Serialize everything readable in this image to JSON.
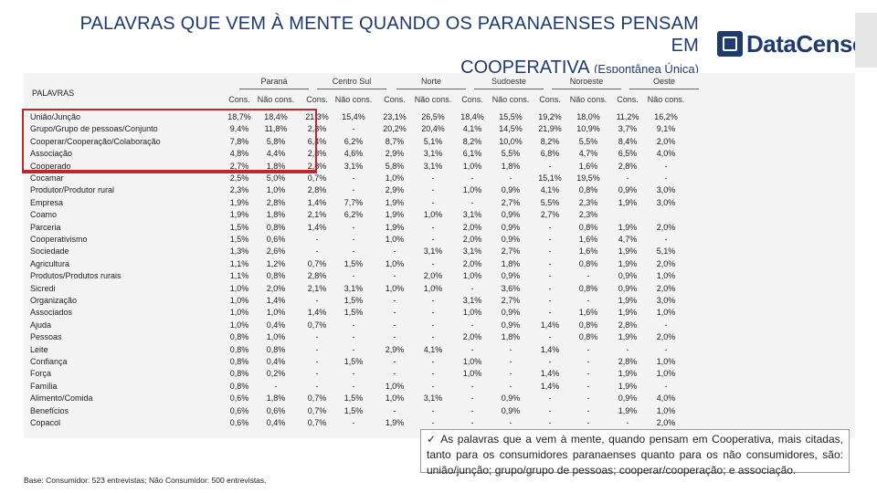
{
  "header": {
    "title_line1": "PALAVRAS QUE VEM À MENTE QUANDO OS PARANAENSES PENSAM EM",
    "title_line2": "COOPERATIVA",
    "title_sub": "(Espontânea Única)"
  },
  "logo": {
    "text": "DataCenso",
    "icon": "datacenso-logo-mark"
  },
  "table": {
    "row_header": "PALAVRAS",
    "groups": [
      "Paraná",
      "Centro Sul",
      "Norte",
      "Sudoeste",
      "Noroeste",
      "Oeste"
    ],
    "subheaders": [
      "Cons.",
      "Não cons."
    ],
    "rows": [
      {
        "label": "União/Junção",
        "values": [
          "18,7%",
          "18,4%",
          "21,3%",
          "15,4%",
          "23,1%",
          "26,5%",
          "18,4%",
          "15,5%",
          "19,2%",
          "18,0%",
          "11,2%",
          "16,2%"
        ]
      },
      {
        "label": "Grupo/Grupo de pessoas/Conjunto",
        "values": [
          "9,4%",
          "11,8%",
          "2,8%",
          "-",
          "20,2%",
          "20,4%",
          "4,1%",
          "14,5%",
          "21,9%",
          "10,9%",
          "3,7%",
          "9,1%"
        ]
      },
      {
        "label": "Cooperar/Cooperação/Colaboração",
        "values": [
          "7,8%",
          "5,8%",
          "6,4%",
          "6,2%",
          "8,7%",
          "5,1%",
          "8,2%",
          "10,0%",
          "8,2%",
          "5,5%",
          "8,4%",
          "2,0%"
        ]
      },
      {
        "label": "Associação",
        "values": [
          "4,8%",
          "4,4%",
          "2,8%",
          "4,6%",
          "2,9%",
          "3,1%",
          "6,1%",
          "5,5%",
          "6,8%",
          "4,7%",
          "6,5%",
          "4,0%"
        ]
      },
      {
        "label": "Cooperado",
        "values": [
          "2,7%",
          "1,8%",
          "2,8%",
          "3,1%",
          "5,8%",
          "3,1%",
          "1,0%",
          "1,8%",
          "-",
          "1,6%",
          "2,8%",
          "-"
        ]
      },
      {
        "label": "Cocamar",
        "values": [
          "2,5%",
          "5,0%",
          "0,7%",
          "-",
          "1,0%",
          "-",
          "-",
          "-",
          "15,1%",
          "19,5%",
          "-",
          "-"
        ]
      },
      {
        "label": "Produtor/Produtor rural",
        "values": [
          "2,3%",
          "1,0%",
          "2,8%",
          "-",
          "2,9%",
          "-",
          "1,0%",
          "0,9%",
          "4,1%",
          "0,8%",
          "0,9%",
          "3,0%"
        ]
      },
      {
        "label": "Empresa",
        "values": [
          "1,9%",
          "2,8%",
          "1,4%",
          "7,7%",
          "1,9%",
          "-",
          "-",
          "2,7%",
          "5,5%",
          "2,3%",
          "1,9%",
          "3,0%"
        ]
      },
      {
        "label": "Coamo",
        "values": [
          "1,9%",
          "1,8%",
          "2,1%",
          "6,2%",
          "1,9%",
          "1,0%",
          "3,1%",
          "0,9%",
          "2,7%",
          "2,3%",
          "",
          ""
        ]
      },
      {
        "label": "Parceria",
        "values": [
          "1,5%",
          "0,8%",
          "1,4%",
          "-",
          "1,9%",
          "-",
          "2,0%",
          "0,9%",
          "-",
          "0,8%",
          "1,9%",
          "2,0%"
        ]
      },
      {
        "label": "Cooperativismo",
        "values": [
          "1,5%",
          "0,6%",
          "-",
          "-",
          "1,0%",
          "-",
          "2,0%",
          "0,9%",
          "-",
          "1,6%",
          "4,7%",
          "-"
        ]
      },
      {
        "label": "Sociedade",
        "values": [
          "1,3%",
          "2,6%",
          "-",
          "-",
          "-",
          "3,1%",
          "3,1%",
          "2,7%",
          "-",
          "1,6%",
          "1,9%",
          "5,1%"
        ]
      },
      {
        "label": "Agricultura",
        "values": [
          "1,1%",
          "1,2%",
          "0,7%",
          "1,5%",
          "1,0%",
          "-",
          "2,0%",
          "1,8%",
          "-",
          "0,8%",
          "1,9%",
          "2,0%"
        ]
      },
      {
        "label": "Produtos/Produtos rurais",
        "values": [
          "1,1%",
          "0,8%",
          "2,8%",
          "-",
          "-",
          "2,0%",
          "1,0%",
          "0,9%",
          "-",
          "-",
          "0,9%",
          "1,0%"
        ]
      },
      {
        "label": "Sicredi",
        "values": [
          "1,0%",
          "2,0%",
          "2,1%",
          "3,1%",
          "1,0%",
          "1,0%",
          "-",
          "3,6%",
          "-",
          "0,8%",
          "0,9%",
          "2,0%"
        ]
      },
      {
        "label": "Organização",
        "values": [
          "1,0%",
          "1,4%",
          "-",
          "1,5%",
          "-",
          "-",
          "3,1%",
          "2,7%",
          "-",
          "-",
          "1,9%",
          "3,0%"
        ]
      },
      {
        "label": "Associados",
        "values": [
          "1,0%",
          "1,0%",
          "1,4%",
          "1,5%",
          "-",
          "-",
          "1,0%",
          "0,9%",
          "-",
          "1,6%",
          "1,9%",
          "1,0%"
        ]
      },
      {
        "label": "Ajuda",
        "values": [
          "1,0%",
          "0,4%",
          "0,7%",
          "-",
          "-",
          "-",
          "-",
          "0,9%",
          "1,4%",
          "0,8%",
          "2,8%",
          "-"
        ]
      },
      {
        "label": "Pessoas",
        "values": [
          "0,8%",
          "1,0%",
          "-",
          "-",
          "-",
          "-",
          "2,0%",
          "1,8%",
          "-",
          "0,8%",
          "1,9%",
          "2,0%"
        ]
      },
      {
        "label": "Leite",
        "values": [
          "0,8%",
          "0,8%",
          "-",
          "-",
          "2,9%",
          "4,1%",
          "-",
          "-",
          "1,4%",
          "-",
          "-",
          "-"
        ]
      },
      {
        "label": "Confiança",
        "values": [
          "0,8%",
          "0,4%",
          "-",
          "1,5%",
          "-",
          "-",
          "1,0%",
          "-",
          "-",
          "-",
          "2,8%",
          "1,0%"
        ]
      },
      {
        "label": "Força",
        "values": [
          "0,8%",
          "0,2%",
          "-",
          "-",
          "-",
          "-",
          "1,0%",
          "-",
          "1,4%",
          "-",
          "1,9%",
          "1,0%"
        ]
      },
      {
        "label": "Família",
        "values": [
          "0,8%",
          "-",
          "-",
          "-",
          "1,0%",
          "-",
          "-",
          "-",
          "1,4%",
          "-",
          "1,9%",
          "-"
        ]
      },
      {
        "label": "Alimento/Comida",
        "values": [
          "0,6%",
          "1,8%",
          "0,7%",
          "1,5%",
          "1,0%",
          "3,1%",
          "-",
          "0,9%",
          "-",
          "-",
          "0,9%",
          "4,0%"
        ]
      },
      {
        "label": "Benefícios",
        "values": [
          "0,6%",
          "0,6%",
          "0,7%",
          "1,5%",
          "-",
          "-",
          "-",
          "0,9%",
          "-",
          "-",
          "1,9%",
          "1,0%"
        ]
      },
      {
        "label": "Copacol",
        "values": [
          "0,6%",
          "0,4%",
          "0,7%",
          "-",
          "1,9%",
          "-",
          "-",
          "-",
          "-",
          "-",
          "-",
          "2,0%"
        ]
      }
    ]
  },
  "conclusion": "As palavras que a vem à mente, quando pensam em Cooperativa, mais citadas, tanto para os consumidores paranaenses quanto para os não consumidores, são: união/junção; grupo/grupo de pessoas; cooperar/cooperação; e associação.",
  "footnote": "Base: Consumidor: 523 entrevistas; Não Consumidor: 500 entrevistas.",
  "colors": {
    "title": "#1f3a6e",
    "highlight": "#c0262d",
    "table_bg": "#f4f4f4"
  }
}
